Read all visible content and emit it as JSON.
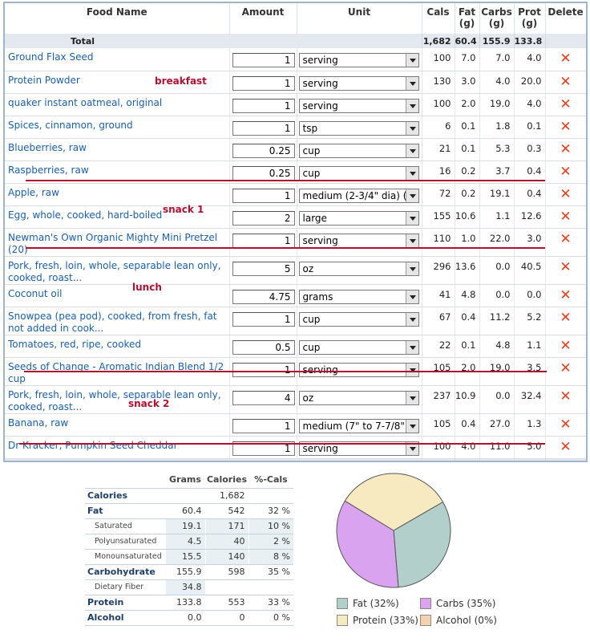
{
  "headers": {
    "food_name": "Food Name",
    "amount": "Amount",
    "unit": "Unit",
    "cals": "Cals",
    "fat": "Fat",
    "fat_unit": "(g)",
    "carbs": "Carbs",
    "carbs_unit": "(g)",
    "prot": "Prot",
    "prot_unit": "(g)",
    "delete": "Delete"
  },
  "totals": {
    "label": "Total",
    "cals": "1,682",
    "fat": "60.4",
    "carbs": "155.9",
    "prot": "133.8"
  },
  "foods": [
    {
      "name": "Ground Flax Seed",
      "amount": "1",
      "unit": "serving",
      "cals": "100",
      "fat": "7.0",
      "carbs": "7.0",
      "prot": "4.0"
    },
    {
      "name": "Protein Powder",
      "amount": "1",
      "unit": "serving",
      "cals": "130",
      "fat": "3.0",
      "carbs": "4.0",
      "prot": "20.0"
    },
    {
      "name": "quaker instant oatmeal, original",
      "amount": "1",
      "unit": "serving",
      "cals": "100",
      "fat": "2.0",
      "carbs": "19.0",
      "prot": "4.0"
    },
    {
      "name": "Spices, cinnamon, ground",
      "amount": "1",
      "unit": "tsp",
      "cals": "6",
      "fat": "0.1",
      "carbs": "1.8",
      "prot": "0.1"
    },
    {
      "name": "Blueberries, raw",
      "amount": "0.25",
      "unit": "cup",
      "cals": "21",
      "fat": "0.1",
      "carbs": "5.3",
      "prot": "0.3"
    },
    {
      "name": "Raspberries, raw",
      "amount": "0.25",
      "unit": "cup",
      "cals": "16",
      "fat": "0.2",
      "carbs": "3.7",
      "prot": "0.4"
    },
    {
      "name": "Apple, raw",
      "amount": "1",
      "unit": "medium (2-3/4\" dia) (a",
      "cals": "72",
      "fat": "0.2",
      "carbs": "19.1",
      "prot": "0.4"
    },
    {
      "name": "Egg, whole, cooked, hard-boiled",
      "amount": "2",
      "unit": "large",
      "cals": "155",
      "fat": "10.6",
      "carbs": "1.1",
      "prot": "12.6"
    },
    {
      "name": "Newman's Own Organic Mighty Mini Pretzel (20)",
      "amount": "1",
      "unit": "serving",
      "cals": "110",
      "fat": "1.0",
      "carbs": "22.0",
      "prot": "3.0"
    },
    {
      "name": "Pork, fresh, loin, whole, separable lean only, cooked, roast...",
      "amount": "5",
      "unit": "oz",
      "cals": "296",
      "fat": "13.6",
      "carbs": "0.0",
      "prot": "40.5"
    },
    {
      "name": "Coconut oil",
      "amount": "4.75",
      "unit": "grams",
      "cals": "41",
      "fat": "4.8",
      "carbs": "0.0",
      "prot": "0.0"
    },
    {
      "name": "Snowpea (pea pod), cooked, from fresh, fat not added in cook...",
      "amount": "1",
      "unit": "cup",
      "cals": "67",
      "fat": "0.4",
      "carbs": "11.2",
      "prot": "5.2"
    },
    {
      "name": "Tomatoes, red, ripe, cooked",
      "amount": "0.5",
      "unit": "cup",
      "cals": "22",
      "fat": "0.1",
      "carbs": "4.8",
      "prot": "1.1"
    },
    {
      "name": "Seeds of Change - Aromatic Indian Blend 1/2 cup",
      "amount": "1",
      "unit": "serving",
      "cals": "105",
      "fat": "2.0",
      "carbs": "19.0",
      "prot": "3.5"
    },
    {
      "name": "Pork, fresh, loin, whole, separable lean only, cooked, roast...",
      "amount": "4",
      "unit": "oz",
      "cals": "237",
      "fat": "10.9",
      "carbs": "0.0",
      "prot": "32.4"
    },
    {
      "name": "Banana, raw",
      "amount": "1",
      "unit": "medium (7\" to 7-7/8\" lo",
      "cals": "105",
      "fat": "0.4",
      "carbs": "27.0",
      "prot": "1.3"
    },
    {
      "name": "Dr Kracker, Pumpkin Seed Cheddar",
      "amount": "1",
      "unit": "serving",
      "cals": "100",
      "fat": "4.0",
      "carbs": "11.0",
      "prot": "5.0"
    }
  ],
  "delete_glyph": "✕",
  "annotations": {
    "breakfast": "breakfast",
    "snack1": "snack 1",
    "lunch": "lunch",
    "snack2": "snack 2"
  },
  "summary": {
    "headers": {
      "grams": "Grams",
      "calories": "Calories",
      "pct": "%-Cals"
    },
    "rows": [
      {
        "label": "Calories",
        "grams": "",
        "calories": "1,682",
        "pct": "",
        "major": true
      },
      {
        "label": "Fat",
        "grams": "60.4",
        "calories": "542",
        "pct": "32 %",
        "major": true
      },
      {
        "label": "Saturated",
        "grams": "19.1",
        "calories": "171",
        "pct": "10 %",
        "major": false
      },
      {
        "label": "Polyunsaturated",
        "grams": "4.5",
        "calories": "40",
        "pct": "2 %",
        "major": false
      },
      {
        "label": "Monounsaturated",
        "grams": "15.5",
        "calories": "140",
        "pct": "8 %",
        "major": false
      },
      {
        "label": "Carbohydrate",
        "grams": "155.9",
        "calories": "598",
        "pct": "35 %",
        "major": true
      },
      {
        "label": "Dietary Fiber",
        "grams": "34.8",
        "calories": "",
        "pct": "",
        "major": false
      },
      {
        "label": "Protein",
        "grams": "133.8",
        "calories": "553",
        "pct": "33 %",
        "major": true
      },
      {
        "label": "Alcohol",
        "grams": "0.0",
        "calories": "0",
        "pct": "0 %",
        "major": true
      }
    ]
  },
  "chart_data": {
    "type": "pie",
    "categories": [
      "Fat",
      "Carbs",
      "Protein",
      "Alcohol"
    ],
    "values": [
      32,
      35,
      33,
      0
    ],
    "colors": [
      "#b3cfcc",
      "#d9a3f0",
      "#f7eac0",
      "#f5d2ae"
    ],
    "legend": [
      "Fat  (32%)",
      "Carbs  (35%)",
      "Protein  (33%)",
      "Alcohol  (0%)"
    ],
    "legend_position": "bottom"
  }
}
